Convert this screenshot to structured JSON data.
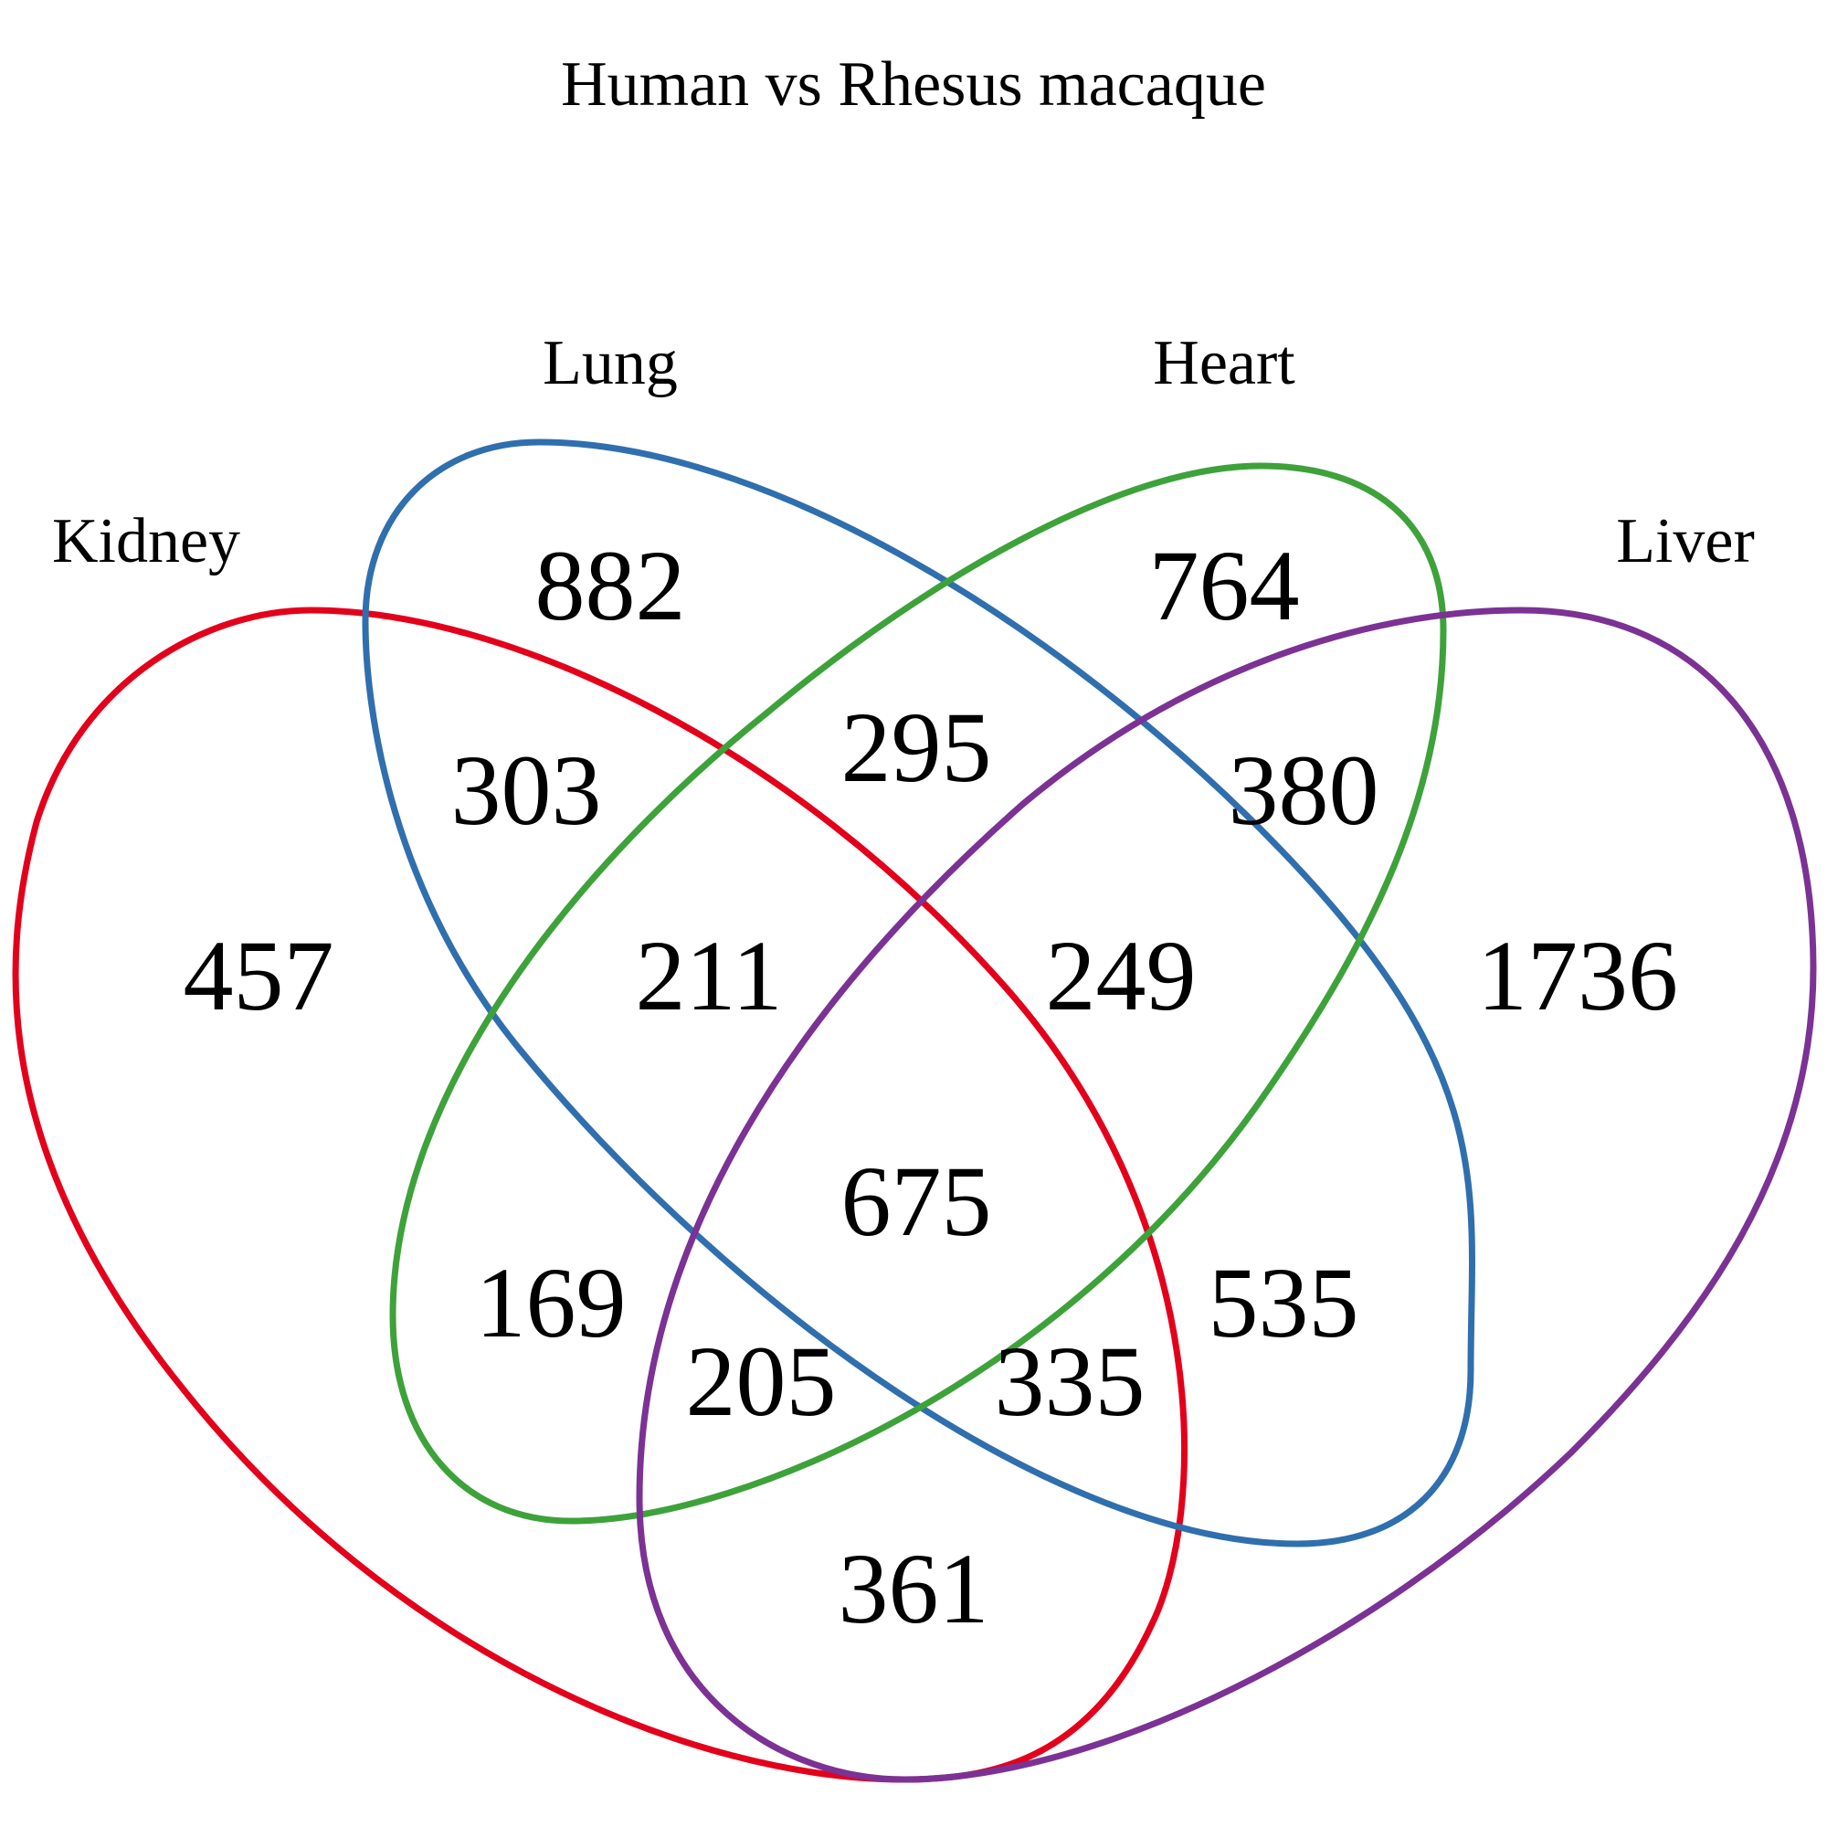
{
  "title": "Human vs Rhesus macaque",
  "sets": [
    {
      "key": "kidney",
      "label": "Kidney",
      "color": "#e3001b"
    },
    {
      "key": "lung",
      "label": "Lung",
      "color": "#2f6fae"
    },
    {
      "key": "heart",
      "label": "Heart",
      "color": "#3ea23a"
    },
    {
      "key": "liver",
      "label": "Liver",
      "color": "#7b3294"
    }
  ],
  "regions": [
    {
      "sets": [
        "lung"
      ],
      "value": "882"
    },
    {
      "sets": [
        "heart"
      ],
      "value": "764"
    },
    {
      "sets": [
        "kidney",
        "lung"
      ],
      "value": "303"
    },
    {
      "sets": [
        "lung",
        "heart"
      ],
      "value": "295"
    },
    {
      "sets": [
        "heart",
        "liver"
      ],
      "value": "380"
    },
    {
      "sets": [
        "kidney"
      ],
      "value": "457"
    },
    {
      "sets": [
        "kidney",
        "lung",
        "heart"
      ],
      "value": "211"
    },
    {
      "sets": [
        "lung",
        "heart",
        "liver"
      ],
      "value": "249"
    },
    {
      "sets": [
        "liver"
      ],
      "value": "1736"
    },
    {
      "sets": [
        "kidney",
        "lung",
        "heart",
        "liver"
      ],
      "value": "675"
    },
    {
      "sets": [
        "kidney",
        "heart"
      ],
      "value": "169"
    },
    {
      "sets": [
        "lung",
        "liver"
      ],
      "value": "535"
    },
    {
      "sets": [
        "kidney",
        "heart",
        "liver"
      ],
      "value": "205"
    },
    {
      "sets": [
        "kidney",
        "lung",
        "liver"
      ],
      "value": "335"
    },
    {
      "sets": [
        "kidney",
        "liver"
      ],
      "value": "361"
    }
  ]
}
